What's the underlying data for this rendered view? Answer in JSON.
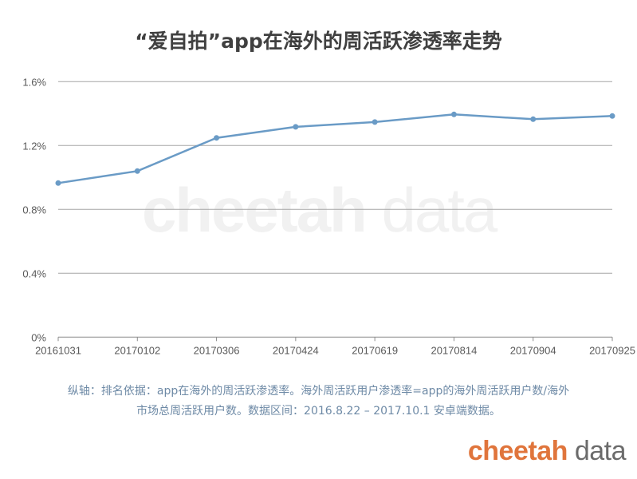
{
  "chart_data": {
    "type": "line",
    "title": "“爱自拍”app在海外的周活跃渗透率走势",
    "categories": [
      "20161031",
      "20170102",
      "20170306",
      "20170424",
      "20170619",
      "20170814",
      "20170904",
      "20170925"
    ],
    "series": [
      {
        "values": [
          0.965,
          1.04,
          1.248,
          1.317,
          1.347,
          1.395,
          1.365,
          1.385
        ],
        "color": "#6a9bc6"
      }
    ],
    "yticks": [
      "0%",
      "0.4%",
      "0.8%",
      "1.2%",
      "1.6%"
    ],
    "ylim": [
      0,
      1.6
    ],
    "yunit": "%",
    "grid": true,
    "xlabel": "",
    "ylabel": ""
  },
  "footnote": {
    "line1": "纵轴：排名依据：app在海外的周活跃渗透率。海外周活跃用户渗透率=app的海外周活跃用户数/海外",
    "line2": "市场总周活跃用户数。数据区间：2016.8.22 – 2017.10.1 安卓端数据。"
  },
  "watermark": {
    "bold": "cheetah",
    "light": " data"
  },
  "logo": {
    "bold": "cheetah",
    "light": " data",
    "color": "#e0753c"
  }
}
